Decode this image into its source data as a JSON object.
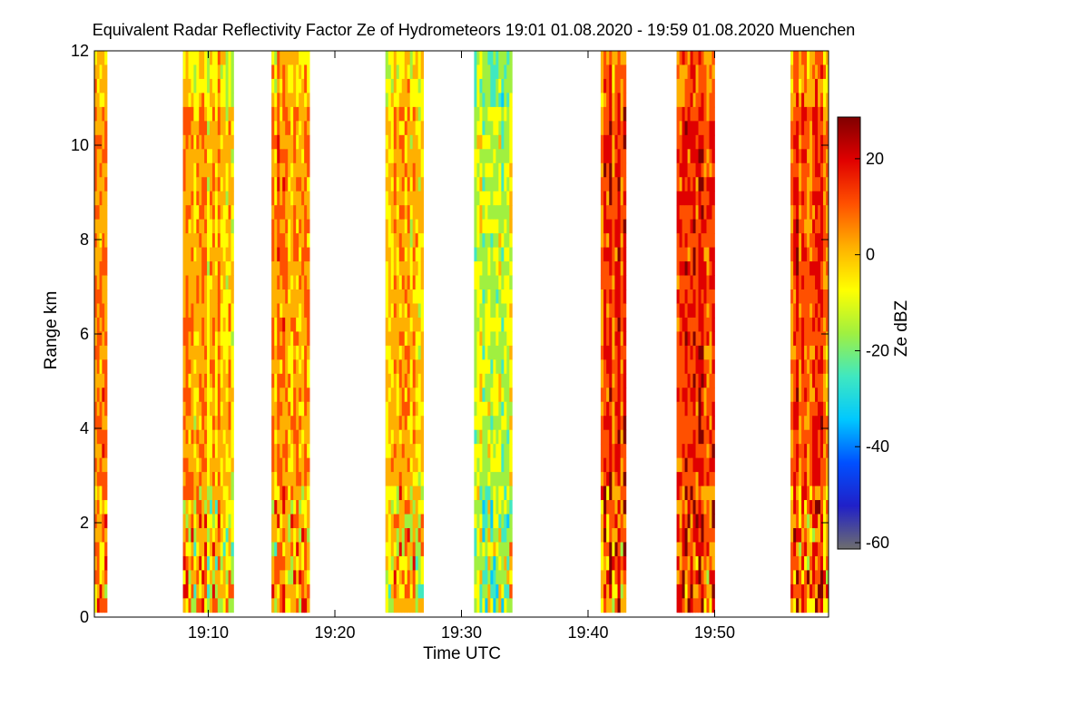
{
  "chart_data": {
    "type": "heatmap",
    "title": "Equivalent Radar Reflectivity Factor Ze of Hydrometeors    19:01 01.08.2020 - 19:59 01.08.2020 Muenchen",
    "xlabel": "Time UTC",
    "ylabel": "Range km",
    "colorbar_label": "Ze dBZ",
    "xlim": [
      "19:01",
      "19:59"
    ],
    "ylim": [
      0,
      12
    ],
    "x_ticks": [
      "19:10",
      "19:20",
      "19:30",
      "19:40",
      "19:50"
    ],
    "y_ticks": [
      "0",
      "2",
      "4",
      "6",
      "8",
      "10",
      "12"
    ],
    "colorbar_range": [
      -60,
      30
    ],
    "colorbar_ticks": [
      "-60",
      "-40",
      "-20",
      "0",
      "20"
    ],
    "grid": false,
    "no_data_color": "#808080",
    "colormap": [
      "#6e6e6e",
      "#2020c8",
      "#0050ff",
      "#00c8ff",
      "#40e8c0",
      "#a0f040",
      "#ffff00",
      "#ffb000",
      "#ff5000",
      "#e00000",
      "#800000"
    ],
    "segments": [
      {
        "start": "19:01",
        "end": "19:02",
        "mean_dbz": 5,
        "top_km": 12.0
      },
      {
        "start": "19:08",
        "end": "19:12",
        "mean_dbz": 2,
        "top_km": 12.0
      },
      {
        "start": "19:15",
        "end": "19:18",
        "mean_dbz": 6,
        "top_km": 12.0
      },
      {
        "start": "19:24",
        "end": "19:27",
        "mean_dbz": 0,
        "top_km": 12.0
      },
      {
        "start": "19:31",
        "end": "19:34",
        "mean_dbz": -12,
        "top_km": 12.0
      },
      {
        "start": "19:41",
        "end": "19:43",
        "mean_dbz": 14,
        "top_km": 12.0
      },
      {
        "start": "19:47",
        "end": "19:50",
        "mean_dbz": 16,
        "top_km": 12.0
      },
      {
        "start": "19:56",
        "end": "19:59",
        "mean_dbz": 12,
        "top_km": 12.0
      }
    ]
  }
}
